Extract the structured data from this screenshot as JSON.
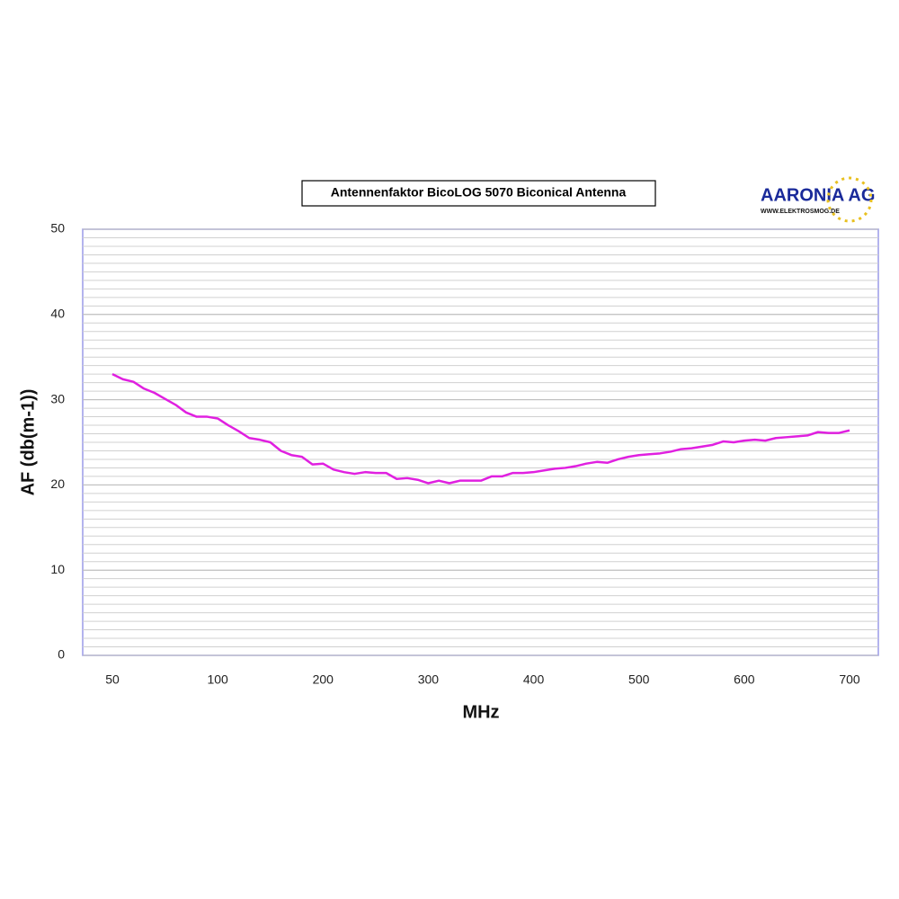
{
  "chart_data": {
    "type": "line",
    "title": "Antennenfaktor BicoLOG 5070 Biconical Antenna",
    "logo": {
      "name": "AARONIA AG",
      "url": "WWW.ELEKTROSMOG.DE"
    },
    "xlabel": "MHz",
    "ylabel": "AF (db(m-1))",
    "categories": [
      "50",
      null,
      null,
      null,
      null,
      null,
      null,
      null,
      null,
      null,
      "100",
      null,
      null,
      null,
      null,
      null,
      null,
      null,
      null,
      null,
      "200",
      null,
      null,
      null,
      null,
      null,
      null,
      null,
      null,
      null,
      "300",
      null,
      null,
      null,
      null,
      null,
      null,
      null,
      null,
      null,
      "400",
      null,
      null,
      null,
      null,
      null,
      null,
      null,
      null,
      null,
      "500",
      null,
      null,
      null,
      null,
      null,
      null,
      null,
      null,
      null,
      "600",
      null,
      null,
      null,
      null,
      null,
      null,
      null,
      null,
      null,
      "700"
    ],
    "series": [
      {
        "name": "AF",
        "color": "#e020e0",
        "values": [
          33.0,
          32.4,
          32.1,
          31.3,
          30.8,
          30.1,
          29.4,
          28.5,
          28.0,
          28.0,
          27.8,
          27.0,
          26.3,
          25.5,
          25.3,
          25.0,
          24.0,
          23.5,
          23.3,
          22.4,
          22.5,
          21.8,
          21.5,
          21.3,
          21.5,
          21.4,
          21.4,
          20.7,
          20.8,
          20.6,
          20.2,
          20.5,
          20.2,
          20.5,
          20.5,
          20.5,
          21.0,
          21.0,
          21.4,
          21.4,
          21.5,
          21.7,
          21.9,
          22.0,
          22.2,
          22.5,
          22.7,
          22.6,
          23.0,
          23.3,
          23.5,
          23.6,
          23.7,
          23.9,
          24.2,
          24.3,
          24.5,
          24.7,
          25.1,
          25.0,
          25.2,
          25.3,
          25.2,
          25.5,
          25.6,
          25.7,
          25.8,
          26.2,
          26.1,
          26.1,
          26.4
        ]
      }
    ],
    "ylim": [
      0,
      50
    ],
    "yticks": [
      0,
      10,
      20,
      30,
      40,
      50
    ],
    "grid": true
  }
}
